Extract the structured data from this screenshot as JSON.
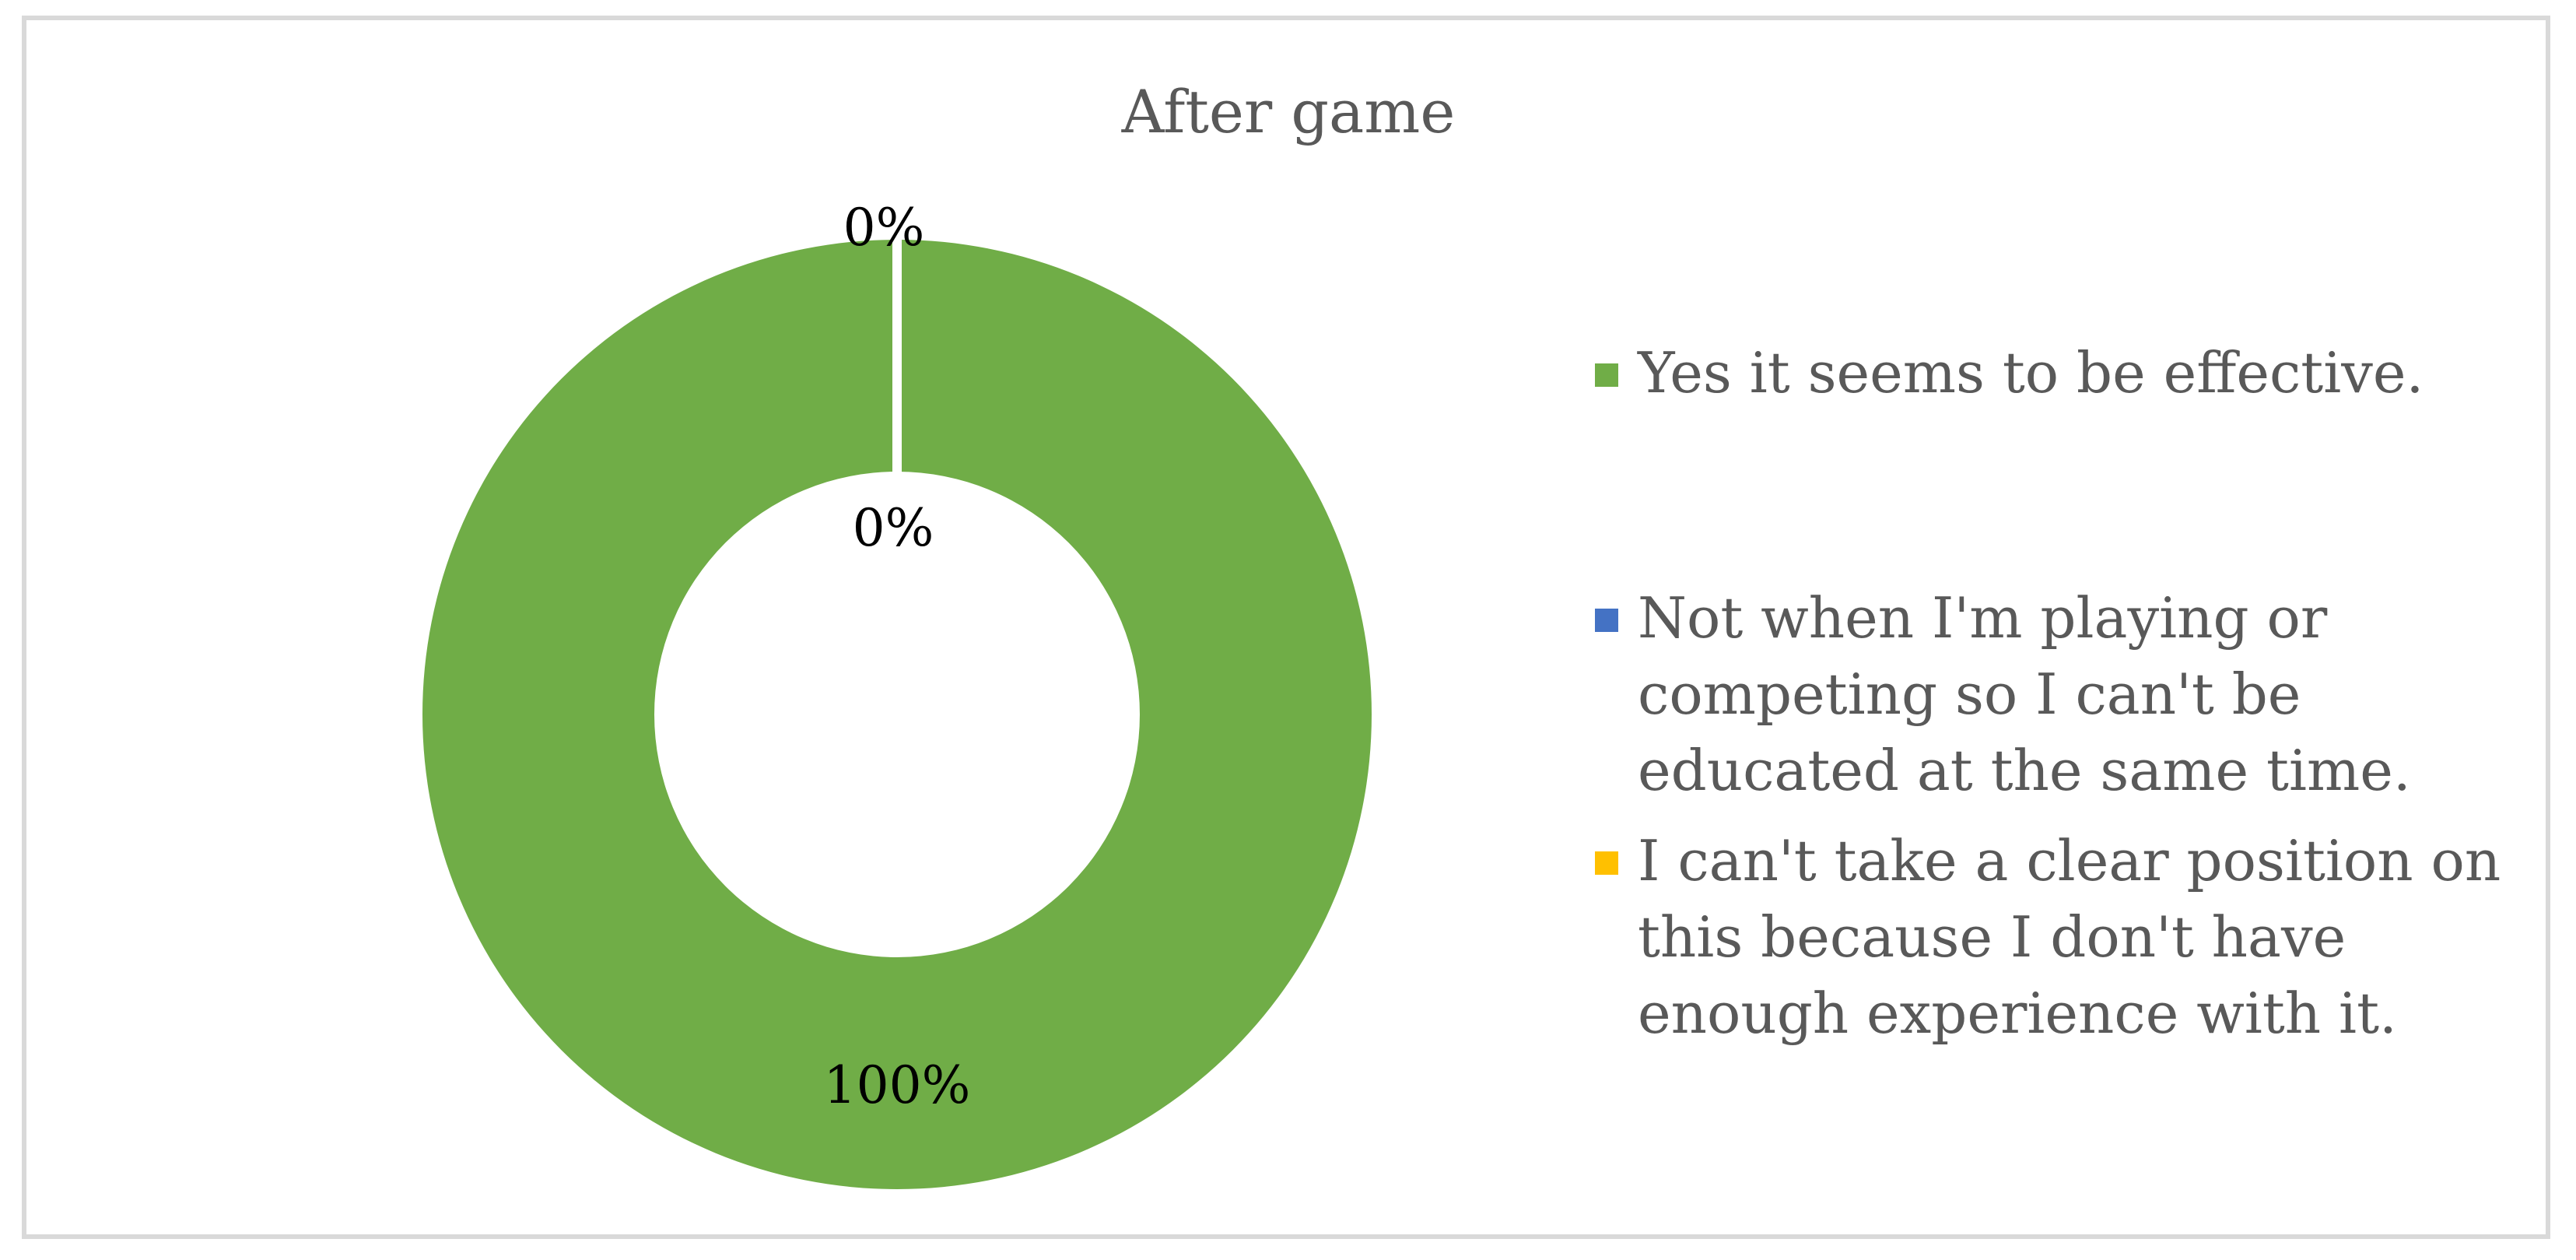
{
  "chart_data": {
    "type": "pie",
    "subtype": "doughnut",
    "title": "After game",
    "legend_position": "right",
    "categories": [
      "Yes it seems to be effective.",
      "Not when I'm playing or competing so I can't be educated at the same time.",
      "I can't take a clear position on this because I don't have enough experience with it."
    ],
    "legend_lines": [
      [
        "Yes it seems to be effective."
      ],
      [
        "Not when I'm playing or",
        "competing so I can't be",
        "educated at the same time."
      ],
      [
        "I can't take a clear position on",
        "this because I don't have",
        "enough experience with it."
      ]
    ],
    "values": [
      100,
      0,
      0
    ],
    "data_labels": [
      "100%",
      "0%",
      "0%"
    ],
    "colors": [
      "#70AD47",
      "#4472C4",
      "#FFC000"
    ]
  }
}
